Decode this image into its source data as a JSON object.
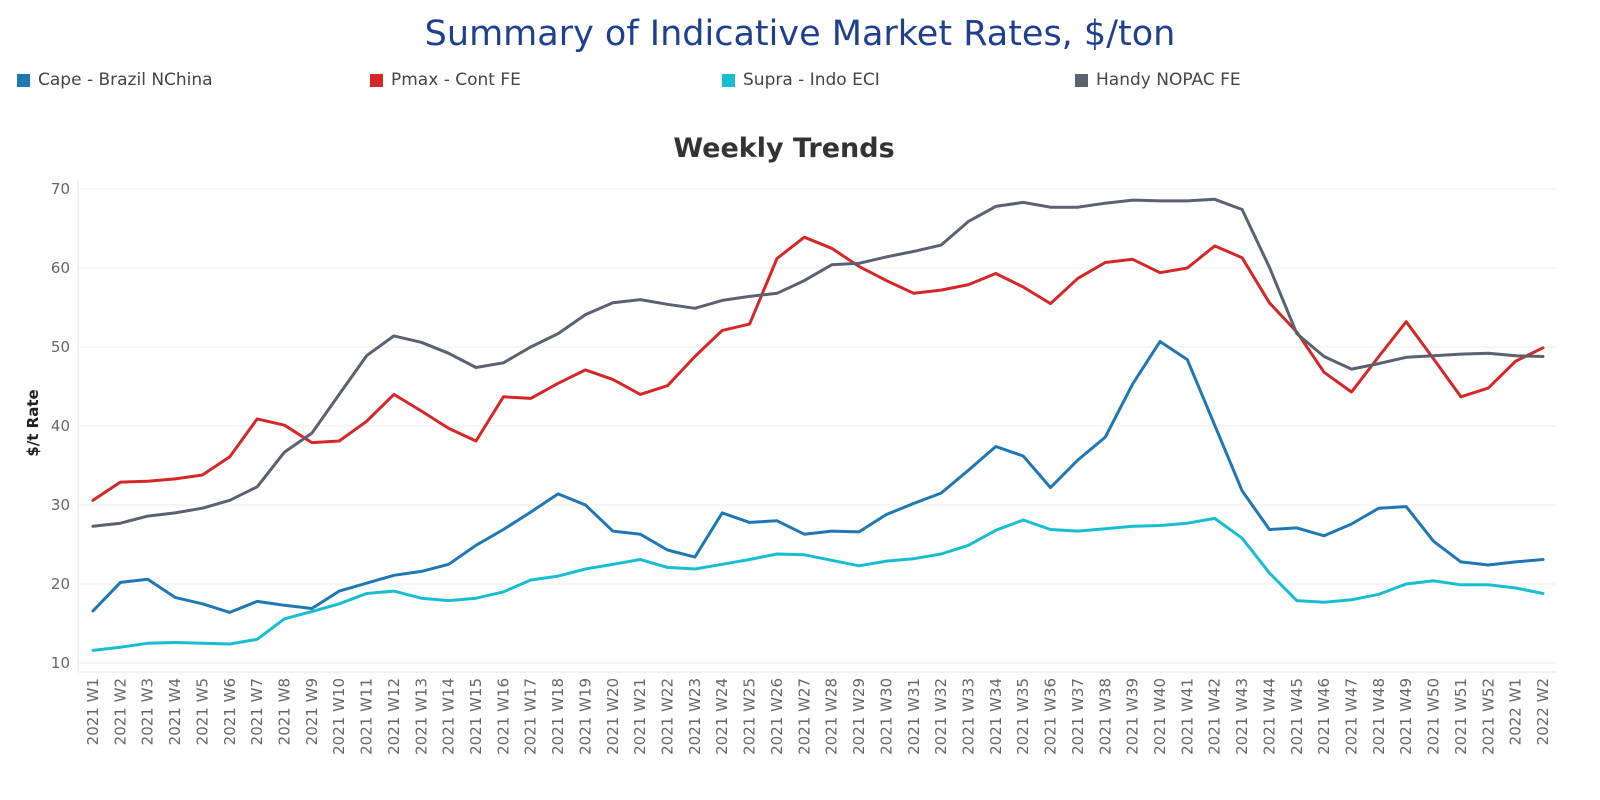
{
  "page_title": "Summary of Indicative Market Rates, $/ton",
  "chart_data": {
    "type": "line",
    "title": "Weekly Trends",
    "xlabel": "",
    "ylabel": "$/t Rate",
    "ylim": [
      10,
      70
    ],
    "yticks": [
      10,
      20,
      30,
      40,
      50,
      60,
      70
    ],
    "grid": true,
    "legend_position": "top",
    "categories": [
      "2021 W1",
      "2021 W2",
      "2021 W3",
      "2021 W4",
      "2021 W5",
      "2021 W6",
      "2021 W7",
      "2021 W8",
      "2021 W9",
      "2021 W10",
      "2021 W11",
      "2021 W12",
      "2021 W13",
      "2021 W14",
      "2021 W15",
      "2021 W16",
      "2021 W17",
      "2021 W18",
      "2021 W19",
      "2021 W20",
      "2021 W21",
      "2021 W22",
      "2021 W23",
      "2021 W24",
      "2021 W25",
      "2021 W26",
      "2021 W27",
      "2021 W28",
      "2021 W29",
      "2021 W30",
      "2021 W31",
      "2021 W32",
      "2021 W33",
      "2021 W34",
      "2021 W35",
      "2021 W36",
      "2021 W37",
      "2021 W38",
      "2021 W39",
      "2021 W40",
      "2021 W41",
      "2021 W42",
      "2021 W43",
      "2021 W44",
      "2021 W45",
      "2021 W46",
      "2021 W47",
      "2021 W48",
      "2021 W49",
      "2021 W50",
      "2021 W51",
      "2021 W52",
      "2022 W1",
      "2022 W2"
    ],
    "series": [
      {
        "name": "Cape - Brazil NChina",
        "color": "#1f77b4",
        "values": [
          16.6,
          20.2,
          20.6,
          18.3,
          17.5,
          16.4,
          17.8,
          17.3,
          16.9,
          19.1,
          20.1,
          21.1,
          21.6,
          22.5,
          24.9,
          26.9,
          29.1,
          31.4,
          30.0,
          26.7,
          26.3,
          24.3,
          23.4,
          29.0,
          27.8,
          28.0,
          26.3,
          26.7,
          26.6,
          28.8,
          30.2,
          31.5,
          34.4,
          37.4,
          36.2,
          32.2,
          35.7,
          38.6,
          45.3,
          50.7,
          48.4,
          40.1,
          31.8,
          26.9,
          27.1,
          26.1,
          27.6,
          29.6,
          29.8,
          25.4,
          22.8,
          22.4,
          22.8,
          23.1
        ]
      },
      {
        "name": "Pmax - Cont FE",
        "color": "#d62728",
        "values": [
          30.6,
          32.9,
          33.0,
          33.3,
          33.8,
          36.1,
          40.9,
          40.1,
          37.9,
          38.1,
          40.6,
          44.0,
          41.9,
          39.7,
          38.1,
          43.7,
          43.5,
          45.4,
          47.1,
          45.9,
          44.0,
          45.1,
          48.8,
          52.1,
          52.9,
          61.2,
          63.9,
          62.5,
          60.2,
          58.4,
          56.8,
          57.2,
          57.9,
          59.3,
          57.6,
          55.5,
          58.7,
          60.7,
          61.1,
          59.4,
          60.0,
          62.8,
          61.3,
          55.6,
          51.9,
          46.8,
          44.3,
          48.8,
          53.2,
          48.5,
          43.7,
          44.8,
          48.2,
          49.9
        ]
      },
      {
        "name": "Supra - Indo ECI",
        "color": "#17becf",
        "values": [
          11.6,
          12.0,
          12.5,
          12.6,
          12.5,
          12.4,
          13.0,
          15.6,
          16.5,
          17.5,
          18.8,
          19.1,
          18.2,
          17.9,
          18.2,
          19.0,
          20.5,
          21.0,
          21.9,
          22.5,
          23.1,
          22.1,
          21.9,
          22.5,
          23.1,
          23.8,
          23.7,
          23.0,
          22.3,
          22.9,
          23.2,
          23.8,
          24.9,
          26.8,
          28.1,
          26.9,
          26.7,
          27.0,
          27.3,
          27.4,
          27.7,
          28.3,
          25.8,
          21.4,
          17.9,
          17.7,
          18.0,
          18.7,
          20.0,
          20.4,
          19.9,
          19.9,
          19.5,
          18.8
        ]
      },
      {
        "name": "Handy NOPAC FE",
        "color": "#5a6270",
        "values": [
          27.3,
          27.7,
          28.6,
          29.0,
          29.6,
          30.6,
          32.3,
          36.7,
          39.1,
          44.0,
          48.9,
          51.4,
          50.6,
          49.2,
          47.4,
          48.0,
          50.0,
          51.7,
          54.1,
          55.6,
          56.0,
          55.4,
          54.9,
          55.9,
          56.4,
          56.8,
          58.4,
          60.4,
          60.6,
          61.4,
          62.1,
          62.9,
          65.9,
          67.8,
          68.3,
          67.7,
          67.7,
          68.2,
          68.6,
          68.5,
          68.5,
          68.7,
          67.4,
          60.1,
          51.7,
          48.8,
          47.2,
          47.9,
          48.7,
          48.9,
          49.1,
          49.2,
          48.9,
          48.8
        ]
      }
    ]
  }
}
